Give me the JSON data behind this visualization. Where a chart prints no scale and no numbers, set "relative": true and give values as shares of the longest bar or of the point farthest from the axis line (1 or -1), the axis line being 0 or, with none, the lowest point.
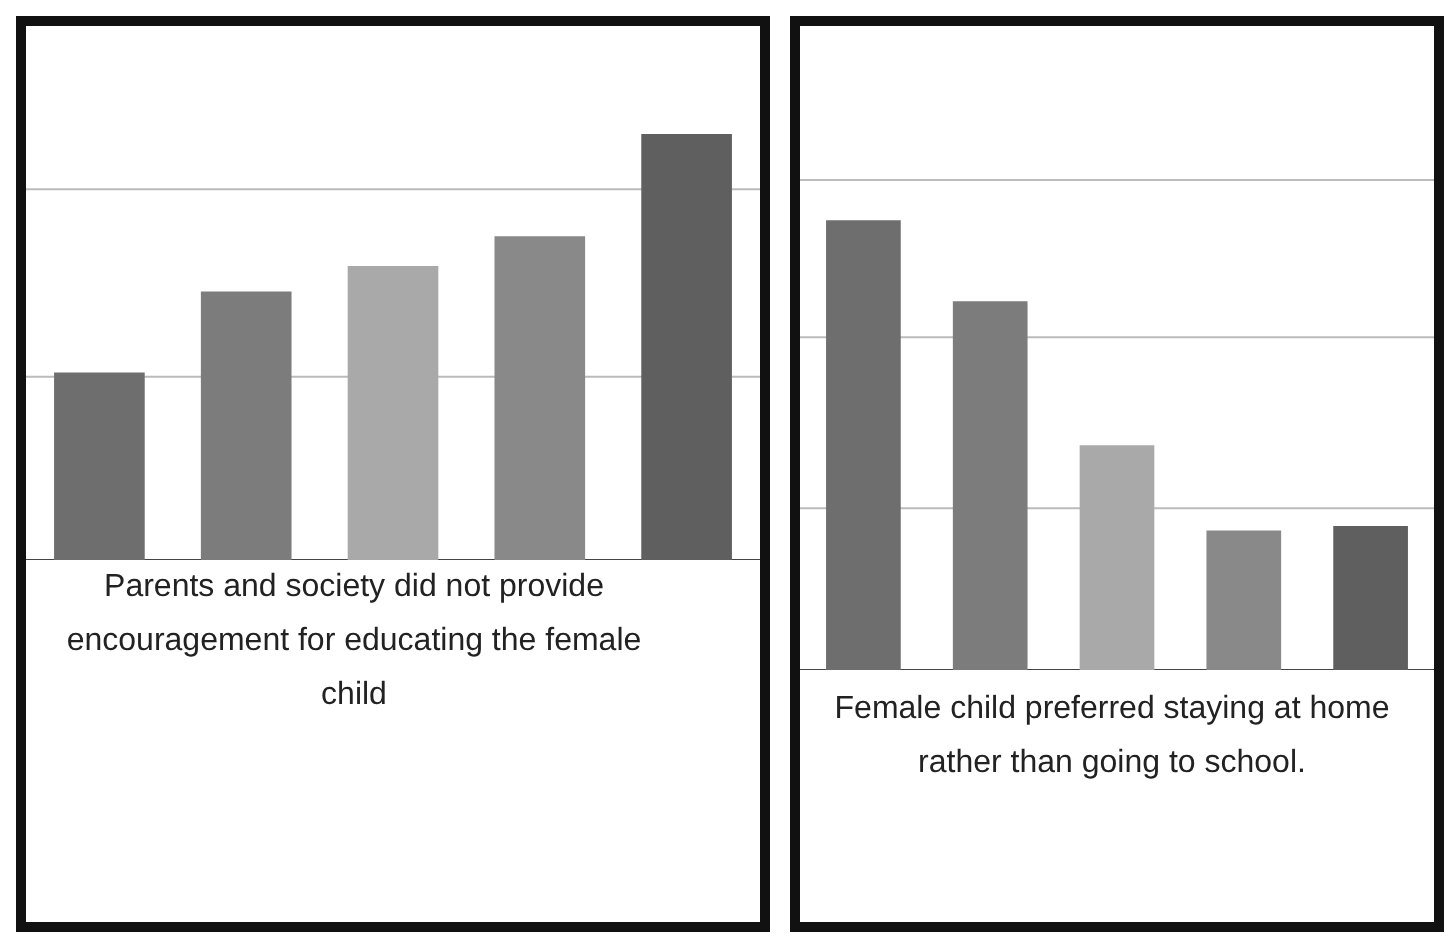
{
  "chart_data": [
    {
      "type": "bar",
      "xlabel": "Parents and society did not provide encouragement for educating the female child",
      "relative": true,
      "categories": [
        null,
        null,
        null,
        null,
        null
      ],
      "values": [
        0.44,
        0.63,
        0.69,
        0.76,
        1
      ],
      "colors": [
        "#6e6e6e",
        "#7c7c7c",
        "#a9a9a9",
        "#898989",
        "#5f5f5f"
      ],
      "tick_labels": false,
      "ref_lines": [
        {
          "axis": "y",
          "value": 0.43,
          "color": "#bbbbbb"
        },
        {
          "axis": "y",
          "value": 0.87,
          "color": "#bbbbbb"
        }
      ]
    },
    {
      "type": "bar",
      "xlabel": "Female child preferred staying at home rather than going to school.",
      "relative": true,
      "categories": [
        null,
        null,
        null,
        null,
        null
      ],
      "values": [
        1,
        0.82,
        0.5,
        0.31,
        0.32
      ],
      "colors": [
        "#6e6e6e",
        "#7c7c7c",
        "#a9a9a9",
        "#898989",
        "#5f5f5f"
      ],
      "tick_labels": false,
      "ref_lines": [
        {
          "axis": "y",
          "value": 0.36,
          "color": "#bbbbbb"
        },
        {
          "axis": "y",
          "value": 0.74,
          "color": "#bbbbbb"
        },
        {
          "axis": "y",
          "value": 1.09,
          "color": "#bbbbbb"
        }
      ]
    }
  ]
}
